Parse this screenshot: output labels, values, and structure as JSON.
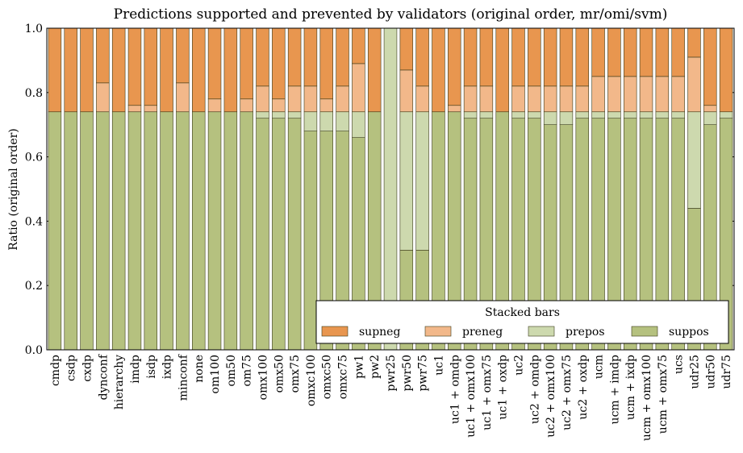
{
  "chart_data": {
    "type": "stacked_bar",
    "title": "Predictions supported and prevented by validators (original order, mr/omi/svm)",
    "y_label": "Ratio (original order)",
    "categories": [
      "cmdp",
      "csdp",
      "cxdp",
      "dynconf",
      "hierarchy",
      "imdp",
      "isdp",
      "ixdp",
      "minconf",
      "none",
      "om100",
      "om50",
      "om75",
      "omx100",
      "omx50",
      "omx75",
      "omxc100",
      "omxc50",
      "omxc75",
      "pw1",
      "pw2",
      "pwr25",
      "pwr50",
      "pwr75",
      "uc1",
      "uc1 + omdp",
      "uc1 + omx100",
      "uc1 + omx75",
      "uc1 + oxdp",
      "uc2",
      "uc2 + omdp",
      "uc2 + omx100",
      "uc2 + omx75",
      "uc2 + oxdp",
      "ucm",
      "ucm + imdp",
      "ucm + ixdp",
      "ucm + omx100",
      "ucm + omx75",
      "ucs",
      "udr25",
      "udr50",
      "udr75"
    ],
    "series": [
      {
        "name": "supneg",
        "color": "#e8964f",
        "values": [
          0.26,
          0.26,
          0.26,
          0.17,
          0.26,
          0.24,
          0.24,
          0.26,
          0.17,
          0.26,
          0.22,
          0.26,
          0.22,
          0.18,
          0.22,
          0.18,
          0.18,
          0.22,
          0.18,
          0.11,
          0.26,
          0,
          0.13,
          0.18,
          0.26,
          0.24,
          0.18,
          0.18,
          0.26,
          0.18,
          0.18,
          0.18,
          0.18,
          0.18,
          0.15,
          0.15,
          0.15,
          0.15,
          0.15,
          0.15,
          0.09,
          0.24,
          0.26
        ]
      },
      {
        "name": "preneg",
        "color": "#f2b88a",
        "values": [
          0,
          0,
          0,
          0.09,
          0,
          0.02,
          0.02,
          0,
          0.09,
          0,
          0.04,
          0,
          0.04,
          0.08,
          0.04,
          0.08,
          0.08,
          0.04,
          0.08,
          0.15,
          0,
          0,
          0.13,
          0.08,
          0,
          0.02,
          0.08,
          0.08,
          0,
          0.08,
          0.08,
          0.08,
          0.08,
          0.08,
          0.11,
          0.11,
          0.11,
          0.11,
          0.11,
          0.11,
          0.17,
          0.02,
          0
        ]
      },
      {
        "name": "prepos",
        "color": "#cdd9ae",
        "values": [
          0,
          0,
          0,
          0,
          0,
          0,
          0,
          0,
          0,
          0,
          0,
          0,
          0,
          0.02,
          0.02,
          0.02,
          0.06,
          0.06,
          0.06,
          0.08,
          0,
          1,
          0.43,
          0.43,
          0,
          0,
          0.02,
          0.02,
          0,
          0.02,
          0.02,
          0.04,
          0.04,
          0.02,
          0.02,
          0.02,
          0.02,
          0.02,
          0.02,
          0.02,
          0.3,
          0.04,
          0.02
        ]
      },
      {
        "name": "suppos",
        "color": "#b5c17f",
        "values": [
          0.74,
          0.74,
          0.74,
          0.74,
          0.74,
          0.74,
          0.74,
          0.74,
          0.74,
          0.74,
          0.74,
          0.74,
          0.74,
          0.72,
          0.72,
          0.72,
          0.68,
          0.68,
          0.68,
          0.66,
          0.74,
          0,
          0.31,
          0.31,
          0.74,
          0.74,
          0.72,
          0.72,
          0.74,
          0.72,
          0.72,
          0.7,
          0.7,
          0.72,
          0.72,
          0.72,
          0.72,
          0.72,
          0.72,
          0.72,
          0.44,
          0.7,
          0.72
        ]
      }
    ],
    "ylim": [
      0,
      1
    ],
    "yticks": [
      {
        "value": 0,
        "label": "0.0"
      },
      {
        "value": 0.2,
        "label": "0.2"
      },
      {
        "value": 0.4,
        "label": "0.4"
      },
      {
        "value": 0.6,
        "label": "0.6"
      },
      {
        "value": 0.8,
        "label": "0.8"
      },
      {
        "value": 1,
        "label": "1.0"
      }
    ],
    "legend_title": "Stacked bars",
    "legend_position": "lower right"
  }
}
